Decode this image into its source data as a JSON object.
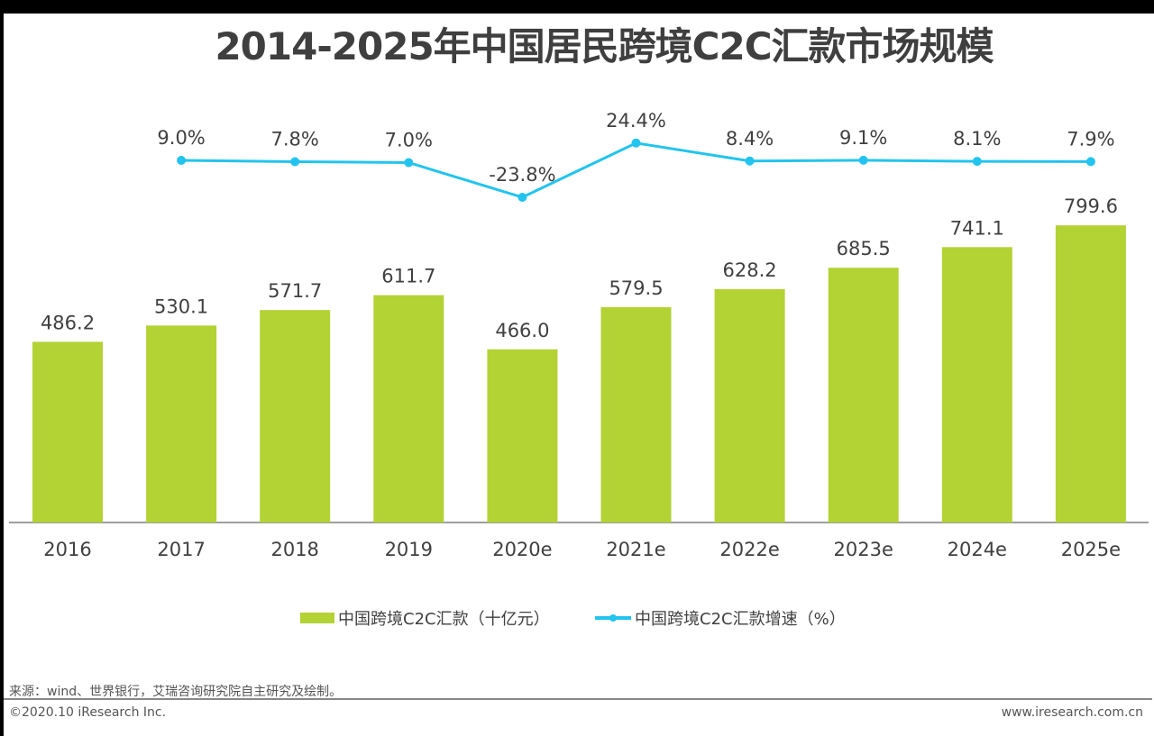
{
  "chart_data": {
    "type": "bar+line",
    "title": "2014-2025年中国居民跨境C2C汇款市场规模",
    "categories": [
      "2016",
      "2017",
      "2018",
      "2019",
      "2020e",
      "2021e",
      "2022e",
      "2023e",
      "2024e",
      "2025e"
    ],
    "series": [
      {
        "name": "中国跨境C2C汇款（十亿元）",
        "type": "bar",
        "color": "#b3d234",
        "values": [
          486.2,
          530.1,
          571.7,
          611.7,
          466.0,
          579.5,
          628.2,
          685.5,
          741.1,
          799.6
        ],
        "labels": [
          "486.2",
          "530.1",
          "571.7",
          "611.7",
          "466.0",
          "579.5",
          "628.2",
          "685.5",
          "741.1",
          "799.6"
        ]
      },
      {
        "name": "中国跨境C2C汇款增速（%）",
        "type": "line",
        "color": "#22c4ef",
        "values": [
          null,
          9.0,
          7.8,
          7.0,
          -23.8,
          24.4,
          8.4,
          9.1,
          8.1,
          7.9
        ],
        "labels": [
          "",
          "9.0%",
          "7.8%",
          "7.0%",
          "-23.8%",
          "24.4%",
          "8.4%",
          "9.1%",
          "8.1%",
          "7.9%"
        ]
      }
    ],
    "legend": "bottom",
    "grid": false
  },
  "footer": {
    "source": "来源：wind、世界银行，艾瑞咨询研究院自主研究及绘制。",
    "copyright": "©2020.10 iResearch Inc.",
    "website": "www.iresearch.com.cn"
  }
}
